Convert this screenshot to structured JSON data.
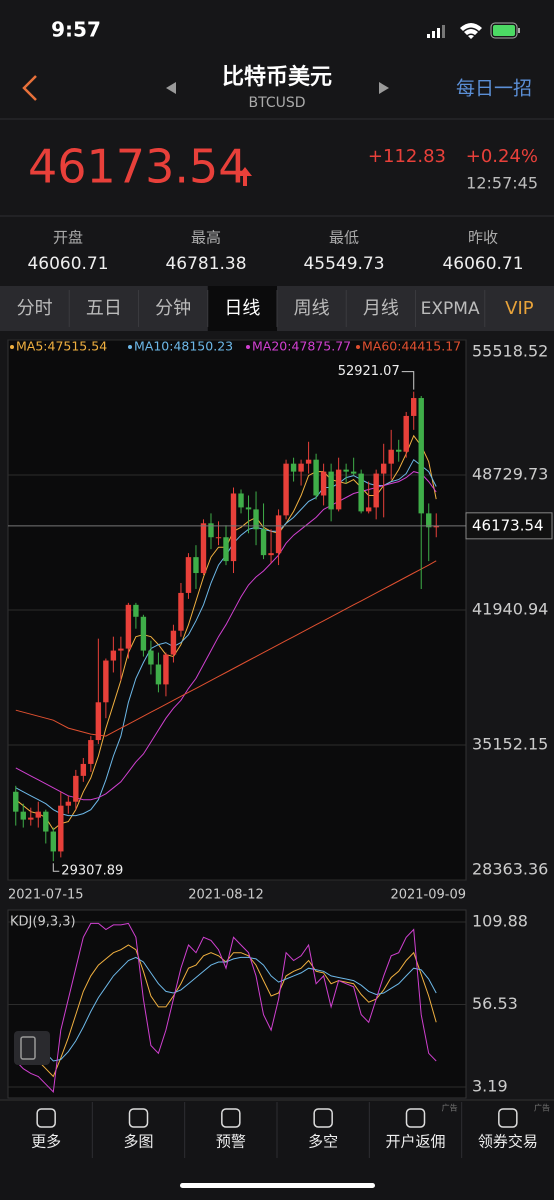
{
  "status_bar": {
    "time": "9:57"
  },
  "header": {
    "title": "比特币美元",
    "subtitle": "BTCUSD",
    "action": "每日一招"
  },
  "quote": {
    "price": "46173.54",
    "change": "+112.83",
    "change_pct": "+0.24%",
    "time": "12:57:45"
  },
  "stats": [
    {
      "label": "开盘",
      "value": "46060.71"
    },
    {
      "label": "最高",
      "value": "46781.38"
    },
    {
      "label": "最低",
      "value": "45549.73"
    },
    {
      "label": "昨收",
      "value": "46060.71"
    }
  ],
  "tabs": {
    "items": [
      "分时",
      "五日",
      "分钟",
      "日线",
      "周线",
      "月线",
      "EXPMA",
      "VIP"
    ],
    "selected": 3
  },
  "chart_data": [
    {
      "type": "candlestick",
      "categories": [
        "2021-07-15",
        null,
        null,
        null,
        null,
        null,
        null,
        null,
        null,
        null,
        null,
        null,
        null,
        null,
        null,
        null,
        null,
        null,
        null,
        null,
        null,
        null,
        null,
        null,
        null,
        null,
        null,
        null,
        "2021-08-12",
        null,
        null,
        null,
        null,
        null,
        null,
        null,
        null,
        null,
        null,
        null,
        null,
        null,
        null,
        null,
        null,
        null,
        null,
        null,
        null,
        null,
        null,
        null,
        null,
        null,
        null,
        null,
        "2021-09-09"
      ],
      "open": [
        32800,
        31800,
        31400,
        31500,
        31800,
        30800,
        29800,
        32100,
        32300,
        33600,
        34200,
        35400,
        37300,
        39400,
        39900,
        40000,
        42200,
        41600,
        39900,
        39200,
        38200,
        39700,
        40900,
        42800,
        44600,
        43800,
        46300,
        45600,
        45600,
        44400,
        47800,
        47100,
        47000,
        46000,
        44700,
        44800,
        46700,
        49300,
        48900,
        49300,
        49500,
        47700,
        48900,
        47000,
        49000,
        48900,
        48800,
        46900,
        47100,
        48800,
        49300,
        50000,
        49900,
        51700,
        52600,
        46800,
        46100
      ],
      "high": [
        33100,
        32200,
        32000,
        32300,
        31900,
        31000,
        32800,
        32600,
        33900,
        34500,
        35600,
        40500,
        39500,
        40600,
        40600,
        42300,
        42300,
        41700,
        40400,
        39800,
        39800,
        41200,
        43300,
        44800,
        45200,
        46500,
        46800,
        46400,
        46200,
        48100,
        48000,
        47700,
        47900,
        47300,
        46000,
        47000,
        49500,
        49600,
        49500,
        50400,
        49800,
        49300,
        49300,
        49600,
        49300,
        49600,
        49000,
        48400,
        49000,
        50300,
        51000,
        50500,
        51900,
        52921.07,
        52700,
        47300,
        46800
      ],
      "low": [
        31100,
        31000,
        31100,
        31000,
        30200,
        29307.89,
        29500,
        31700,
        31900,
        33300,
        33800,
        35200,
        36500,
        38800,
        38400,
        39500,
        41000,
        39600,
        38700,
        37800,
        37600,
        39300,
        40600,
        42500,
        43000,
        43700,
        45000,
        45200,
        44200,
        43800,
        46800,
        45800,
        45200,
        44500,
        44300,
        44200,
        46500,
        48400,
        48200,
        48800,
        47500,
        47200,
        46400,
        46900,
        48300,
        48700,
        46800,
        46800,
        46500,
        46600,
        48500,
        49400,
        49600,
        51000,
        43000,
        44400,
        45600
      ],
      "close": [
        31800,
        31400,
        31500,
        31800,
        30800,
        29800,
        32100,
        32300,
        33600,
        34200,
        35400,
        37300,
        39400,
        39900,
        40000,
        42200,
        41600,
        39900,
        39200,
        38200,
        39700,
        40900,
        42800,
        44600,
        43800,
        46300,
        45600,
        45600,
        44400,
        47800,
        47100,
        47000,
        46000,
        44700,
        44800,
        46700,
        49300,
        48900,
        49300,
        49500,
        47700,
        48900,
        47000,
        49000,
        48900,
        48800,
        46900,
        47100,
        48800,
        49300,
        50000,
        49900,
        51700,
        52600,
        46800,
        46100,
        46173.54
      ],
      "up_color": "#e8403a",
      "down_color": "#3fae49",
      "series": [
        {
          "name": "MA5:47515.54",
          "color": "#f0b040",
          "values": [
            32400,
            32100,
            31800,
            31700,
            31500,
            30900,
            31200,
            31300,
            31900,
            32800,
            33500,
            34600,
            36000,
            37200,
            38400,
            39800,
            40600,
            40700,
            40600,
            40200,
            39700,
            39600,
            40200,
            41200,
            42400,
            43600,
            44600,
            45100,
            45100,
            45900,
            46100,
            46400,
            46600,
            46100,
            45900,
            45800,
            46300,
            46900,
            47700,
            48700,
            48900,
            48900,
            48500,
            48400,
            48300,
            48500,
            48100,
            47700,
            47700,
            48200,
            48400,
            49000,
            49800,
            50700,
            50200,
            49400,
            47515.54
          ]
        },
        {
          "name": "MA10:48150.23",
          "color": "#6db8e8",
          "values": [
            33000,
            32800,
            32600,
            32400,
            32200,
            31900,
            31700,
            31600,
            31600,
            31700,
            31900,
            32400,
            33400,
            34600,
            35600,
            37300,
            38500,
            39300,
            40000,
            40200,
            40300,
            40100,
            40300,
            40700,
            41400,
            42200,
            43300,
            44200,
            44700,
            45300,
            45700,
            46000,
            46100,
            46000,
            45900,
            45900,
            46300,
            46600,
            47000,
            47400,
            47600,
            48100,
            48100,
            48300,
            48600,
            48700,
            48500,
            48300,
            48200,
            48200,
            48400,
            48500,
            48800,
            49500,
            49200,
            48900,
            48150.23
          ]
        },
        {
          "name": "MA20:47875.77",
          "color": "#d040d0",
          "values": [
            34000,
            33800,
            33600,
            33400,
            33200,
            33000,
            32800,
            32600,
            32500,
            32400,
            32400,
            32500,
            32700,
            33000,
            33300,
            33800,
            34300,
            34700,
            35300,
            35900,
            36500,
            37000,
            37400,
            38000,
            38500,
            39200,
            39900,
            40600,
            41200,
            41900,
            42600,
            43200,
            43600,
            43900,
            44300,
            44700,
            45300,
            45700,
            46000,
            46300,
            46600,
            47000,
            47200,
            47400,
            47600,
            47800,
            47900,
            48000,
            48100,
            48200,
            48300,
            48400,
            48600,
            48900,
            48800,
            48400,
            47875.77
          ]
        },
        {
          "name": "MA60:44415.17",
          "color": "#e05030",
          "values": [
            36900,
            36800,
            36700,
            36600,
            36500,
            36400,
            36200,
            36000,
            35900,
            35800,
            35700,
            35650,
            35600,
            35800,
            36000,
            36200,
            36400,
            36600,
            36800,
            37000,
            37200,
            37400,
            37600,
            37800,
            38000,
            38200,
            38400,
            38600,
            38800,
            39000,
            39200,
            39400,
            39600,
            39800,
            40000,
            40200,
            40400,
            40600,
            40800,
            41000,
            41200,
            41400,
            41600,
            41800,
            42000,
            42200,
            42400,
            42600,
            42800,
            43000,
            43200,
            43400,
            43600,
            43800,
            44000,
            44200,
            44415.17
          ]
        }
      ],
      "ylim": [
        28363.36,
        55518.52
      ],
      "yticks": [
        55518.52,
        48729.73,
        41940.94,
        35152.15,
        28363.36
      ],
      "grid": true
    },
    {
      "type": "line",
      "title": "KDJ(9,3,3)",
      "series": [
        {
          "color": "#f0b040",
          "values": [
            30,
            27,
            24,
            20,
            15,
            10,
            22,
            35,
            50,
            65,
            75,
            82,
            86,
            90,
            92,
            95,
            92,
            78,
            62,
            55,
            55,
            62,
            70,
            80,
            82,
            88,
            90,
            88,
            84,
            90,
            90,
            88,
            82,
            72,
            62,
            64,
            75,
            78,
            80,
            85,
            78,
            77,
            70,
            72,
            71,
            70,
            63,
            58,
            60,
            66,
            74,
            78,
            85,
            90,
            76,
            62,
            45
          ]
        },
        {
          "color": "#6db8e8",
          "values": [
            38,
            35,
            32,
            29,
            25,
            20,
            21,
            26,
            33,
            42,
            52,
            61,
            68,
            75,
            80,
            85,
            87,
            84,
            77,
            70,
            65,
            64,
            66,
            70,
            74,
            78,
            82,
            84,
            84,
            86,
            87,
            87,
            86,
            82,
            75,
            71,
            73,
            75,
            77,
            80,
            79,
            78,
            75,
            74,
            73,
            72,
            69,
            65,
            63,
            64,
            67,
            70,
            75,
            80,
            79,
            73,
            64
          ]
        },
        {
          "color": "#d040d0",
          "values": [
            20,
            15,
            12,
            10,
            5,
            0,
            40,
            60,
            80,
            100,
            109,
            109,
            105,
            108,
            108,
            109,
            100,
            60,
            30,
            25,
            40,
            60,
            80,
            95,
            90,
            100,
            98,
            92,
            80,
            100,
            95,
            90,
            75,
            50,
            40,
            60,
            90,
            85,
            88,
            95,
            70,
            75,
            55,
            72,
            70,
            68,
            50,
            45,
            60,
            75,
            88,
            90,
            100,
            105,
            50,
            25,
            20
          ]
        }
      ],
      "ylim": [
        3.19,
        109.88
      ],
      "yticks": [
        109.88,
        56.53,
        3.19
      ],
      "grid": true
    }
  ],
  "bottom_nav": {
    "items": [
      "更多",
      "多图",
      "预警",
      "多空",
      "开户返佣",
      "领券交易"
    ],
    "ad_labels": [
      "广告",
      "广告"
    ]
  }
}
